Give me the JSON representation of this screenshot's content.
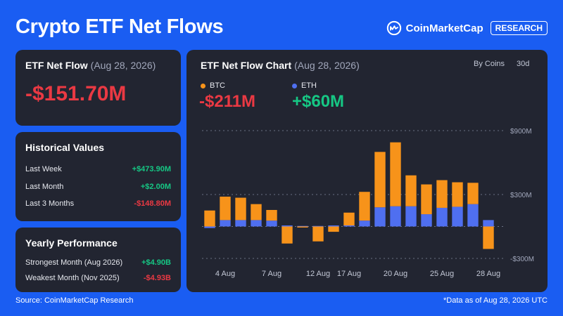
{
  "header": {
    "title": "Crypto ETF Net Flows"
  },
  "brand": {
    "name": "CoinMarketCap",
    "tag": "RESEARCH",
    "logo_icon": "coinmarketcap-logo-icon"
  },
  "net_flow_card": {
    "title": "ETF Net Flow",
    "date": "(Aug 28, 2026)",
    "value": "-$151.70M"
  },
  "historical": {
    "title": "Historical Values",
    "rows": [
      {
        "label": "Last Week",
        "value": "+$473.90M"
      },
      {
        "label": "Last Month",
        "value": "+$2.00M"
      },
      {
        "label": "Last 3 Months",
        "value": "-$148.80M"
      }
    ]
  },
  "yearly": {
    "title": "Yearly Performance",
    "rows": [
      {
        "label": "Strongest Month (Aug 2026)",
        "value": "+$4.90B"
      },
      {
        "label": "Weakest Month (Nov 2025)",
        "value": "-$4.93B"
      }
    ]
  },
  "chart_panel": {
    "title": "ETF Net Flow Chart",
    "date": "(Aug 28, 2026)",
    "by_coins": "By Coins",
    "range": "30d",
    "legend": [
      {
        "name": "BTC",
        "value": "-$211M",
        "color": "#f7931a"
      },
      {
        "name": "ETH",
        "value": "+$60M",
        "color": "#4f6ff0"
      }
    ]
  },
  "chart_data": {
    "type": "bar",
    "stacked": true,
    "title": "ETF Net Flow Chart",
    "categories": [
      "4 Aug",
      "5 Aug",
      "6 Aug",
      "7 Aug",
      "8 Aug",
      "11 Aug",
      "12 Aug",
      "13 Aug",
      "14 Aug",
      "15 Aug",
      "18 Aug",
      "19 Aug",
      "20 Aug",
      "21 Aug",
      "22 Aug",
      "25 Aug",
      "26 Aug",
      "27 Aug",
      "28 Aug"
    ],
    "x_tick_labels": [
      "4 Aug",
      "7 Aug",
      "12 Aug",
      "17 Aug",
      "20 Aug",
      "25 Aug",
      "28 Aug"
    ],
    "x_tick_label_indices": [
      1,
      4,
      7,
      9,
      12,
      15,
      18
    ],
    "series": [
      {
        "name": "BTC",
        "color": "#f7931a",
        "values": [
          150,
          220,
          210,
          150,
          100,
          -160,
          -10,
          -140,
          -50,
          120,
          270,
          520,
          600,
          290,
          280,
          260,
          230,
          200,
          -211
        ]
      },
      {
        "name": "ETH",
        "color": "#4f6ff0",
        "values": [
          -15,
          60,
          60,
          60,
          55,
          10,
          5,
          5,
          10,
          10,
          55,
          180,
          190,
          190,
          115,
          175,
          185,
          210,
          60
        ]
      }
    ],
    "y_ticks": [
      900,
      300,
      -300
    ],
    "y_tick_labels": [
      "$900M",
      "$300M",
      "-$300M"
    ],
    "ylim": [
      -300,
      900
    ],
    "grid": true,
    "legend_position": "top-left"
  },
  "footer": {
    "source": "Source: CoinMarketCap Research",
    "note": "*Data as of Aug 28, 2026 UTC"
  }
}
